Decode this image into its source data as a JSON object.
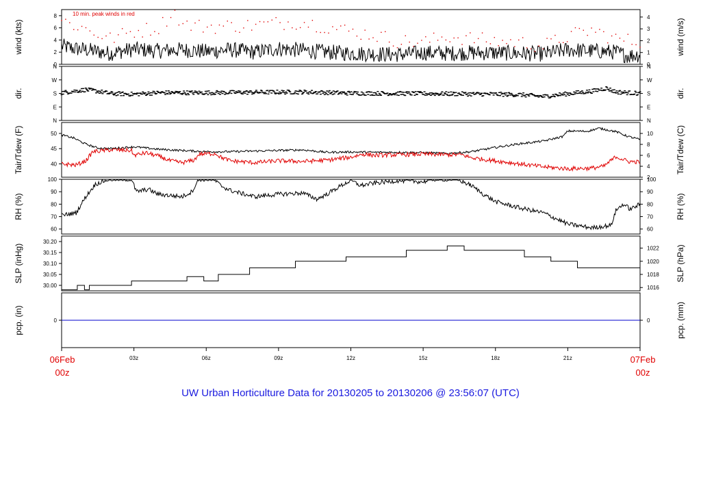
{
  "footer_title": "UW Urban Horticulture Data for 20130205  to  20130206 @ 23:56:07  (UTC)",
  "colors": {
    "obs": "#000000",
    "peak": "#e00000",
    "tdew": "#e00000",
    "pcp": "#0000cc",
    "edge_label": "#e00000"
  },
  "time_axis": {
    "start_label": [
      "06Feb",
      "00z"
    ],
    "end_label": [
      "07Feb",
      "00z"
    ],
    "ticks": [
      {
        "hour": 0,
        "label": ""
      },
      {
        "hour": 3,
        "label": "03z"
      },
      {
        "hour": 6,
        "label": "06z"
      },
      {
        "hour": 9,
        "label": "09z"
      },
      {
        "hour": 12,
        "label": "12z"
      },
      {
        "hour": 15,
        "label": "15z"
      },
      {
        "hour": 18,
        "label": "18z"
      },
      {
        "hour": 21,
        "label": "21z"
      },
      {
        "hour": 24,
        "label": ""
      }
    ]
  },
  "chart_data": [
    {
      "type": "line",
      "id": "wind",
      "ylabel": "wind (kts)",
      "ylabel_right": "wind (m/s)",
      "annotation": "10 min. peak winds in red",
      "ylim": [
        0,
        9
      ],
      "left_ticks": [
        {
          "v": 0,
          "t": "0"
        },
        {
          "v": 2,
          "t": "2"
        },
        {
          "v": 4,
          "t": "4"
        },
        {
          "v": 6,
          "t": "6"
        },
        {
          "v": 8,
          "t": "8"
        }
      ],
      "right_ticks": [
        {
          "v": 0,
          "t": "0"
        },
        {
          "v": 1.944,
          "t": "1"
        },
        {
          "v": 3.888,
          "t": "2"
        },
        {
          "v": 5.832,
          "t": "3"
        },
        {
          "v": 7.776,
          "t": "4"
        }
      ],
      "series": [
        {
          "role": "wind",
          "style": "line",
          "anchors": [
            [
              0,
              3.0
            ],
            [
              0.5,
              2.6
            ],
            [
              1,
              2.4
            ],
            [
              2,
              1.8
            ],
            [
              3,
              2.5
            ],
            [
              4,
              2.2
            ],
            [
              5,
              2.4
            ],
            [
              6,
              2.1
            ],
            [
              7,
              2.4
            ],
            [
              8,
              2.0
            ],
            [
              9,
              2.6
            ],
            [
              10,
              2.3
            ],
            [
              11,
              2.0
            ],
            [
              12,
              1.8
            ],
            [
              13,
              1.7
            ],
            [
              14,
              1.6
            ],
            [
              15,
              1.9
            ],
            [
              16,
              1.8
            ],
            [
              17,
              1.9
            ],
            [
              18,
              1.9
            ],
            [
              19,
              1.8
            ],
            [
              20,
              1.7
            ],
            [
              21,
              2.4
            ],
            [
              22,
              2.2
            ],
            [
              23,
              2.0
            ],
            [
              23.5,
              1.4
            ],
            [
              24,
              1.6
            ]
          ],
          "noise": 1.3,
          "count": 720
        },
        {
          "role": "peak",
          "style": "dots",
          "anchors": [
            [
              0,
              7.2
            ],
            [
              1,
              5.8
            ],
            [
              2,
              4.2
            ],
            [
              3,
              5.4
            ],
            [
              4,
              6.0
            ],
            [
              4.7,
              8.8
            ],
            [
              5,
              6.5
            ],
            [
              6,
              6.2
            ],
            [
              7,
              6.3
            ],
            [
              8,
              6.4
            ],
            [
              9,
              6.8
            ],
            [
              10,
              7.0
            ],
            [
              11,
              6.2
            ],
            [
              12,
              5.4
            ],
            [
              13,
              4.8
            ],
            [
              14,
              3.8
            ],
            [
              15,
              3.6
            ],
            [
              16,
              4.6
            ],
            [
              17,
              4.2
            ],
            [
              18,
              3.8
            ],
            [
              19,
              3.6
            ],
            [
              20,
              3.0
            ],
            [
              21,
              4.6
            ],
            [
              22,
              5.6
            ],
            [
              23,
              4.2
            ],
            [
              24,
              3.6
            ]
          ],
          "noise": 1.2,
          "count": 144
        }
      ]
    },
    {
      "type": "scatter",
      "id": "dir",
      "ylabel": "dir.",
      "ylabel_right": "dir.",
      "ylim": [
        0,
        360
      ],
      "left_ticks": [
        {
          "v": 0,
          "t": "N"
        },
        {
          "v": 90,
          "t": "E"
        },
        {
          "v": 180,
          "t": "S"
        },
        {
          "v": 270,
          "t": "W"
        },
        {
          "v": 360,
          "t": "N"
        }
      ],
      "right_ticks": [
        {
          "v": 0,
          "t": "N"
        },
        {
          "v": 90,
          "t": "E"
        },
        {
          "v": 180,
          "t": "S"
        },
        {
          "v": 270,
          "t": "W"
        },
        {
          "v": 360,
          "t": "N"
        }
      ],
      "series": [
        {
          "role": "dir",
          "style": "dashes",
          "anchors": [
            [
              0,
              185
            ],
            [
              1,
              205
            ],
            [
              1.5,
              195
            ],
            [
              2,
              180
            ],
            [
              3,
              175
            ],
            [
              4,
              185
            ],
            [
              6,
              185
            ],
            [
              8,
              188
            ],
            [
              10,
              190
            ],
            [
              12,
              182
            ],
            [
              14,
              180
            ],
            [
              16,
              178
            ],
            [
              18,
              175
            ],
            [
              19,
              172
            ],
            [
              20,
              160
            ],
            [
              21,
              178
            ],
            [
              22,
              195
            ],
            [
              22.6,
              215
            ],
            [
              23,
              190
            ],
            [
              24,
              180
            ]
          ],
          "noise": 14,
          "count": 720
        }
      ]
    },
    {
      "type": "line",
      "id": "temp",
      "ylabel": "Tair/Tdew (F)",
      "ylabel_right": "Tair/Tdew (C)",
      "ylim": [
        35.6,
        53.6
      ],
      "left_ticks": [
        {
          "v": 40,
          "t": "40"
        },
        {
          "v": 45,
          "t": "45"
        },
        {
          "v": 50,
          "t": "50"
        }
      ],
      "right_ticks": [
        {
          "v": 35.6,
          "t": "2"
        },
        {
          "v": 39.2,
          "t": "4"
        },
        {
          "v": 42.8,
          "t": "6"
        },
        {
          "v": 46.4,
          "t": "8"
        },
        {
          "v": 50,
          "t": "10"
        }
      ],
      "series": [
        {
          "role": "tair",
          "style": "line",
          "anchors": [
            [
              0,
              49.5
            ],
            [
              0.5,
              48.5
            ],
            [
              1,
              46.5
            ],
            [
              1.5,
              45.2
            ],
            [
              2,
              45.0
            ],
            [
              3,
              45.6
            ],
            [
              4,
              44.8
            ],
            [
              5,
              44.4
            ],
            [
              6,
              44.0
            ],
            [
              7,
              44.0
            ],
            [
              8,
              44.2
            ],
            [
              9,
              44.4
            ],
            [
              10,
              44.6
            ],
            [
              11,
              43.8
            ],
            [
              12,
              43.9
            ],
            [
              13,
              43.8
            ],
            [
              14,
              43.8
            ],
            [
              15,
              43.7
            ],
            [
              16,
              43.4
            ],
            [
              17,
              44.0
            ],
            [
              18,
              45.4
            ],
            [
              19,
              46.6
            ],
            [
              20,
              47.5
            ],
            [
              20.8,
              49.0
            ],
            [
              21,
              50.8
            ],
            [
              21.8,
              50.7
            ],
            [
              22.3,
              51.7
            ],
            [
              23,
              50.6
            ],
            [
              23.5,
              49.0
            ],
            [
              24,
              48.0
            ]
          ],
          "noise": 0.35,
          "count": 720
        },
        {
          "role": "tdew",
          "style": "line",
          "anchors": [
            [
              0,
              40.0
            ],
            [
              0.6,
              39.6
            ],
            [
              1,
              41.0
            ],
            [
              1.3,
              44.0
            ],
            [
              2,
              44.6
            ],
            [
              2.9,
              44.4
            ],
            [
              3,
              42.8
            ],
            [
              3.5,
              43.6
            ],
            [
              4,
              42.6
            ],
            [
              4.5,
              41.0
            ],
            [
              5,
              40.4
            ],
            [
              5.5,
              41.2
            ],
            [
              5.7,
              43.2
            ],
            [
              6.4,
              43.4
            ],
            [
              6.6,
              42.2
            ],
            [
              7,
              41.0
            ],
            [
              8,
              40.4
            ],
            [
              9,
              41.0
            ],
            [
              10,
              40.8
            ],
            [
              11,
              41.2
            ],
            [
              12,
              42.2
            ],
            [
              12.5,
              43.2
            ],
            [
              13,
              42.8
            ],
            [
              14,
              43.0
            ],
            [
              15,
              43.2
            ],
            [
              16,
              43.0
            ],
            [
              16.6,
              43.0
            ],
            [
              17,
              42.0
            ],
            [
              18,
              41.0
            ],
            [
              19,
              40.0
            ],
            [
              20,
              39.0
            ],
            [
              21,
              38.4
            ],
            [
              22,
              38.6
            ],
            [
              22.5,
              39.2
            ],
            [
              23,
              42.4
            ],
            [
              23.5,
              40.8
            ],
            [
              24,
              40.6
            ]
          ],
          "noise": 0.7,
          "count": 720
        }
      ]
    },
    {
      "type": "line",
      "id": "rh",
      "ylabel": "RH (%)",
      "ylabel_right": "RH (%)",
      "ylim": [
        56,
        100
      ],
      "left_ticks": [
        {
          "v": 60,
          "t": "60"
        },
        {
          "v": 70,
          "t": "70"
        },
        {
          "v": 80,
          "t": "80"
        },
        {
          "v": 90,
          "t": "90"
        },
        {
          "v": 100,
          "t": "100"
        }
      ],
      "right_ticks": [
        {
          "v": 60,
          "t": "60"
        },
        {
          "v": 70,
          "t": "70"
        },
        {
          "v": 80,
          "t": "80"
        },
        {
          "v": 90,
          "t": "90"
        },
        {
          "v": 100,
          "t": "100"
        }
      ],
      "series": [
        {
          "role": "rh",
          "style": "line",
          "anchors": [
            [
              0,
              71
            ],
            [
              0.6,
              73
            ],
            [
              1,
              86
            ],
            [
              1.4,
              96
            ],
            [
              1.8,
              99
            ],
            [
              2,
              100
            ],
            [
              2.9,
              100
            ],
            [
              3.1,
              90
            ],
            [
              3.6,
              92
            ],
            [
              4,
              88
            ],
            [
              5,
              86
            ],
            [
              5.4,
              90
            ],
            [
              5.7,
              100
            ],
            [
              6.3,
              100
            ],
            [
              6.6,
              95
            ],
            [
              7,
              91
            ],
            [
              8,
              86
            ],
            [
              9,
              88
            ],
            [
              10,
              89
            ],
            [
              10.6,
              84
            ],
            [
              11,
              88
            ],
            [
              11.6,
              95
            ],
            [
              12,
              99
            ],
            [
              12.4,
              95
            ],
            [
              13,
              97
            ],
            [
              14,
              99
            ],
            [
              15,
              98
            ],
            [
              15.4,
              100
            ],
            [
              16.4,
              100
            ],
            [
              17,
              95
            ],
            [
              17.5,
              88
            ],
            [
              18,
              82
            ],
            [
              19,
              77
            ],
            [
              20,
              73
            ],
            [
              21,
              64
            ],
            [
              22,
              61
            ],
            [
              22.8,
              63
            ],
            [
              23,
              75
            ],
            [
              23.3,
              80
            ],
            [
              23.6,
              76
            ],
            [
              24,
              80
            ]
          ],
          "noise": 1.8,
          "count": 720
        }
      ]
    },
    {
      "type": "line",
      "id": "slp",
      "ylabel": "SLP (inHg)",
      "ylabel_right": "SLP (hPa)",
      "ylim": [
        29.975,
        30.225
      ],
      "left_ticks": [
        {
          "v": 30.0,
          "t": "30.00"
        },
        {
          "v": 30.05,
          "t": "30.05"
        },
        {
          "v": 30.1,
          "t": "30.10"
        },
        {
          "v": 30.15,
          "t": "30.15"
        },
        {
          "v": 30.2,
          "t": "30.20"
        }
      ],
      "right_ticks": [
        {
          "v": 29.99,
          "t": "1016"
        },
        {
          "v": 30.05,
          "t": "1018"
        },
        {
          "v": 30.11,
          "t": "1020"
        },
        {
          "v": 30.17,
          "t": "1022"
        }
      ],
      "series": [
        {
          "role": "slp",
          "style": "steps",
          "steps": [
            [
              0,
              29.98
            ],
            [
              0.65,
              30.0
            ],
            [
              0.95,
              29.98
            ],
            [
              1.15,
              30.0
            ],
            [
              2.9,
              30.02
            ],
            [
              5.2,
              30.04
            ],
            [
              5.9,
              30.02
            ],
            [
              6.5,
              30.05
            ],
            [
              7.8,
              30.08
            ],
            [
              9.7,
              30.11
            ],
            [
              11.8,
              30.13
            ],
            [
              14.3,
              30.16
            ],
            [
              16.0,
              30.18
            ],
            [
              16.7,
              30.16
            ],
            [
              19.2,
              30.13
            ],
            [
              20.3,
              30.11
            ],
            [
              21.4,
              30.08
            ],
            [
              24,
              30.08
            ]
          ]
        }
      ]
    },
    {
      "type": "line",
      "id": "pcp",
      "ylabel": "pcp. (in)",
      "ylabel_right": "pcp. (mm)",
      "ylim": [
        -1,
        1
      ],
      "left_ticks": [
        {
          "v": 0,
          "t": "0"
        }
      ],
      "right_ticks": [
        {
          "v": 0,
          "t": "0"
        }
      ],
      "series": [
        {
          "role": "pcp",
          "style": "flat",
          "value": 0
        }
      ]
    }
  ]
}
